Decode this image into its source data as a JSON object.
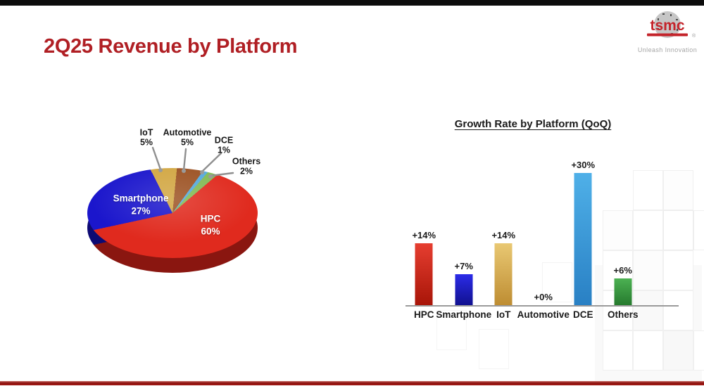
{
  "slide": {
    "title": "2Q25 Revenue by Platform"
  },
  "logo": {
    "brand": "tsmc",
    "registered": "®",
    "tagline": "Unleash Innovation",
    "brand_color": "#c4242b"
  },
  "chart_data": [
    {
      "type": "pie",
      "style": "3d",
      "title": "2Q25 Revenue by Platform",
      "start_angle": -15,
      "legend_position": "callouts",
      "slices": [
        {
          "label": "IoT",
          "value": 5,
          "pct": "5%",
          "color": "#d2a743",
          "dark": "#9a7722"
        },
        {
          "label": "Automotive",
          "value": 5,
          "pct": "5%",
          "color": "#9c5223",
          "dark": "#6e3714"
        },
        {
          "label": "DCE",
          "value": 1,
          "pct": "1%",
          "color": "#55aadd",
          "dark": "#3379a8"
        },
        {
          "label": "Others",
          "value": 2,
          "pct": "2%",
          "color": "#82ba55",
          "dark": "#568a33"
        },
        {
          "label": "HPC",
          "value": 60,
          "pct": "60%",
          "color": "#e02a1e",
          "dark": "#8e1710"
        },
        {
          "label": "Smartphone",
          "value": 27,
          "pct": "27%",
          "color": "#1b16cc",
          "dark": "#0d0a77"
        }
      ]
    },
    {
      "type": "bar",
      "title": "Growth Rate by Platform (QoQ)",
      "categories": [
        "HPC",
        "Smartphone",
        "IoT",
        "Automotive",
        "DCE",
        "Others"
      ],
      "values": [
        14,
        7,
        14,
        0,
        30,
        6
      ],
      "value_labels": [
        "+14%",
        "+7%",
        "+14%",
        "+0%",
        "+30%",
        "+6%"
      ],
      "xlabel": "",
      "ylabel": "",
      "ylim": [
        0,
        32
      ],
      "grid": false,
      "bar_colors": [
        [
          "#e63e30",
          "#a81508"
        ],
        [
          "#2b2be8",
          "#11118f"
        ],
        [
          "#e9c873",
          "#be8d32"
        ],
        [
          "#cccccc",
          "#cccccc"
        ],
        [
          "#4fb0e8",
          "#2980c4"
        ],
        [
          "#4cb152",
          "#267a2e"
        ]
      ]
    }
  ]
}
